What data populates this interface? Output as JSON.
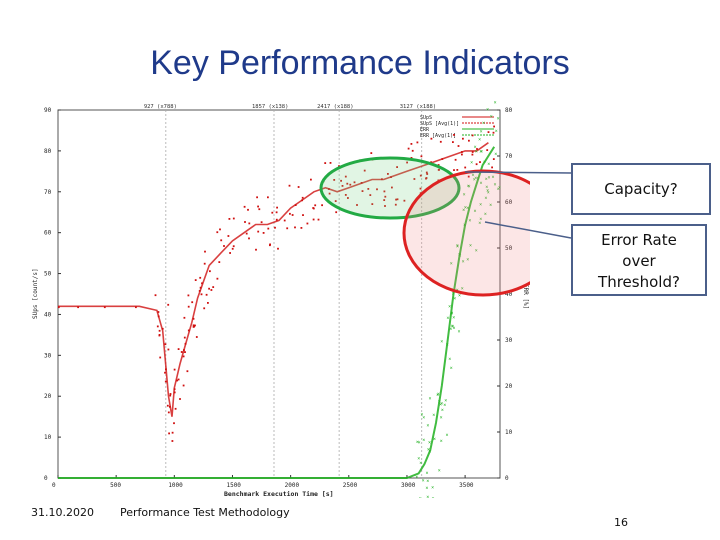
{
  "slide": {
    "title": "Key Performance Indicators",
    "footer_date": "31.10.2020",
    "footer_title": "Performance Test Methodology",
    "page_number": "16"
  },
  "callouts": {
    "capacity": "Capacity?",
    "error_rate": [
      "Error Rate",
      "over",
      "Threshold?"
    ]
  },
  "colors": {
    "title": "#1f3a8a",
    "series_red": "#d01010",
    "series_green": "#20b020",
    "capacity_ellipse": "#22aa44",
    "error_ellipse": "#dd2222",
    "callout_border": "#4b5f8a"
  },
  "chart_data": {
    "type": "scatter",
    "xlabel": "Benchmark Execution Time [s]",
    "ylabel_left": "SUps [count/s]",
    "ylabel_right": "ERR [%]",
    "xlim": [
      0,
      3800
    ],
    "ylim_left": [
      0,
      90
    ],
    "ylim_right": [
      0,
      80
    ],
    "x_ticks": [
      "0",
      "500",
      "1000",
      "1500",
      "2000",
      "2500",
      "3000",
      "3500"
    ],
    "y_ticks_left": [
      "0",
      "10",
      "20",
      "30",
      "40",
      "50",
      "60",
      "70",
      "80",
      "90"
    ],
    "y_ticks_right": [
      "0",
      "10",
      "20",
      "30",
      "40",
      "50",
      "60",
      "70",
      "80"
    ],
    "top_markers": [
      {
        "x": 927,
        "label": "927 (x788)"
      },
      {
        "x": 1857,
        "label": "1857 (x138)"
      },
      {
        "x": 2417,
        "label": "2417 (x188)"
      },
      {
        "x": 3127,
        "label": "3127 (x188)"
      }
    ],
    "legend": [
      "SUpS",
      "SUpS [Avg(1)]",
      "ERR",
      "ERR [Avg(1)]"
    ],
    "series": [
      {
        "name": "SUpS",
        "color": "#d01010",
        "points": [
          [
            0,
            42
          ],
          [
            200,
            42
          ],
          [
            400,
            42
          ],
          [
            700,
            42
          ],
          [
            850,
            41
          ],
          [
            900,
            36
          ],
          [
            950,
            20
          ],
          [
            980,
            15
          ],
          [
            1000,
            22
          ],
          [
            1050,
            28
          ],
          [
            1100,
            33
          ],
          [
            1150,
            38
          ],
          [
            1200,
            44
          ],
          [
            1250,
            48
          ],
          [
            1300,
            52
          ],
          [
            1400,
            55
          ],
          [
            1500,
            58
          ],
          [
            1600,
            60
          ],
          [
            1700,
            62
          ],
          [
            1800,
            62
          ],
          [
            1900,
            63
          ],
          [
            2000,
            66
          ],
          [
            2100,
            68
          ],
          [
            2200,
            70
          ],
          [
            2300,
            71
          ],
          [
            2400,
            70
          ],
          [
            2500,
            71
          ],
          [
            2600,
            72
          ],
          [
            2700,
            73
          ],
          [
            2800,
            73
          ],
          [
            2900,
            74
          ],
          [
            3000,
            75
          ],
          [
            3100,
            76
          ],
          [
            3200,
            77
          ],
          [
            3300,
            78
          ],
          [
            3400,
            79
          ],
          [
            3500,
            80
          ],
          [
            3600,
            80
          ],
          [
            3700,
            82
          ]
        ]
      },
      {
        "name": "ERR",
        "color": "#20b020",
        "points": [
          [
            0,
            0
          ],
          [
            500,
            0
          ],
          [
            1000,
            0
          ],
          [
            1500,
            0
          ],
          [
            2000,
            0
          ],
          [
            2500,
            0
          ],
          [
            3000,
            0
          ],
          [
            3100,
            1
          ],
          [
            3150,
            3
          ],
          [
            3200,
            6
          ],
          [
            3250,
            12
          ],
          [
            3300,
            20
          ],
          [
            3350,
            30
          ],
          [
            3400,
            40
          ],
          [
            3450,
            48
          ],
          [
            3500,
            55
          ],
          [
            3550,
            60
          ],
          [
            3600,
            64
          ],
          [
            3650,
            68
          ],
          [
            3700,
            70
          ],
          [
            3750,
            72
          ]
        ]
      }
    ]
  }
}
